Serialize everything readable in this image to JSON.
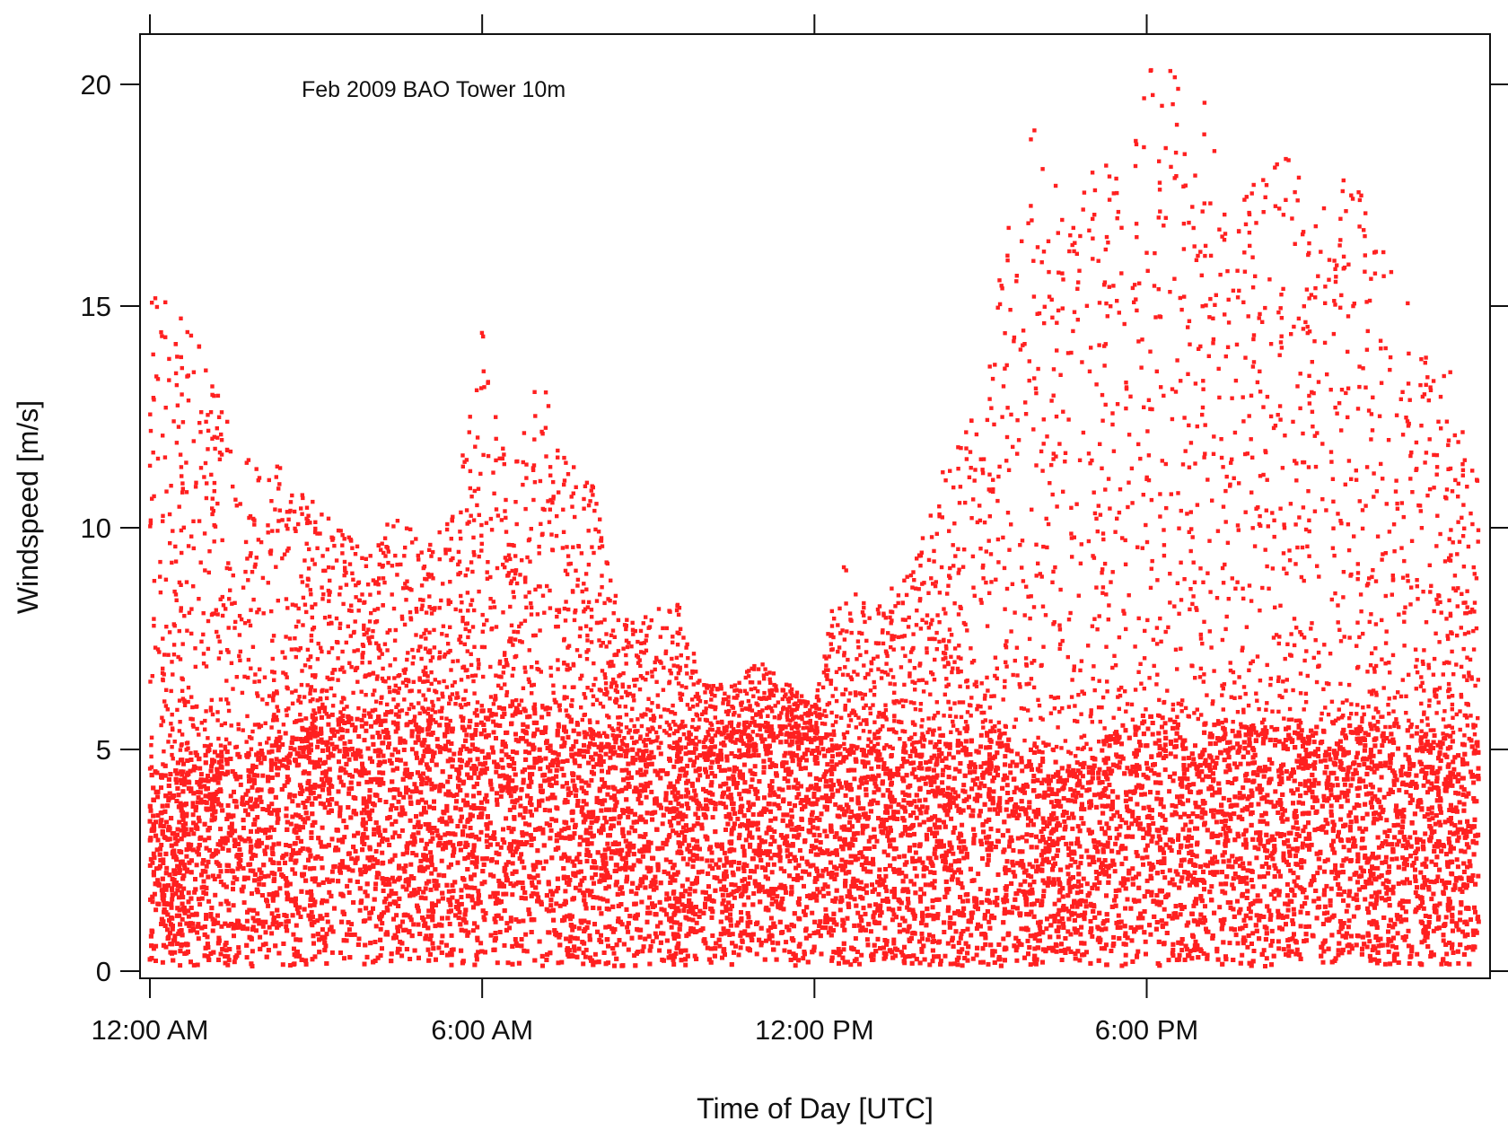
{
  "chart_data": {
    "type": "scatter",
    "title": "",
    "annotation": "Feb 2009 BAO Tower 10m",
    "xlabel": "Time of Day [UTC]",
    "ylabel": "Windspeed [m/s]",
    "x_unit": "hours of day (UTC)",
    "xlim": [
      0,
      24.2
    ],
    "ylim": [
      0,
      21
    ],
    "x_ticks": [
      {
        "value": 0,
        "label": "12:00 AM"
      },
      {
        "value": 6,
        "label": "6:00 AM"
      },
      {
        "value": 12,
        "label": "12:00 PM"
      },
      {
        "value": 18,
        "label": "6:00 PM"
      }
    ],
    "y_ticks": [
      {
        "value": 0,
        "label": "0"
      },
      {
        "value": 5,
        "label": "5"
      },
      {
        "value": 10,
        "label": "10"
      },
      {
        "value": 15,
        "label": "15"
      },
      {
        "value": 20,
        "label": "20"
      }
    ],
    "grid": false,
    "marker_color": "#ff2020",
    "series": [
      {
        "name": "",
        "profile_x": [
          0,
          0.5,
          1,
          1.5,
          2,
          2.5,
          3,
          3.5,
          4,
          4.5,
          5,
          5.5,
          6,
          6.5,
          7,
          7.5,
          8,
          8.5,
          9,
          9.5,
          10,
          10.5,
          11,
          11.5,
          12,
          12.5,
          13,
          13.5,
          14,
          14.5,
          15,
          15.5,
          16,
          16.5,
          17,
          17.5,
          18,
          18.5,
          19,
          19.5,
          20,
          20.5,
          21,
          21.5,
          22,
          22.5,
          23,
          23.5,
          24
        ],
        "dense_upper_y": [
          4.5,
          4.8,
          5.0,
          5.0,
          5.0,
          5.5,
          5.8,
          5.8,
          5.9,
          5.8,
          5.6,
          5.6,
          5.9,
          6.0,
          6.0,
          5.7,
          5.4,
          5.2,
          5.1,
          5.0,
          5.0,
          5.1,
          5.2,
          5.3,
          5.2,
          5.0,
          5.0,
          5.0,
          5.2,
          5.4,
          5.5,
          5.3,
          5.0,
          4.6,
          5.0,
          5.5,
          5.8,
          5.7,
          5.6,
          5.6,
          5.5,
          5.5,
          5.6,
          5.6,
          5.5,
          5.5,
          5.4,
          5.3,
          5.2
        ],
        "sparse_upper_y": [
          15.5,
          15.0,
          14.5,
          12.0,
          11.5,
          11.5,
          10.5,
          10.0,
          9.5,
          10.5,
          9.5,
          10.5,
          14.5,
          11.0,
          13.5,
          12.0,
          11.0,
          8.0,
          8.0,
          8.5,
          6.5,
          6.5,
          7.0,
          6.5,
          6.0,
          9.5,
          8.0,
          9.0,
          10.0,
          12.0,
          13.5,
          17.0,
          19.5,
          17.0,
          19.0,
          18.0,
          20.5,
          20.5,
          20.0,
          17.0,
          18.0,
          18.5,
          17.5,
          18.5,
          17.5,
          16.0,
          14.0,
          13.5,
          11.0
        ],
        "density_note": "Dense cloud 0 to ~5.5 m/s at all times; sparse points up to ~15 m/s near midnight, up to ~20.8 m/s in the evening (peak near 18:40 UTC)"
      }
    ]
  }
}
